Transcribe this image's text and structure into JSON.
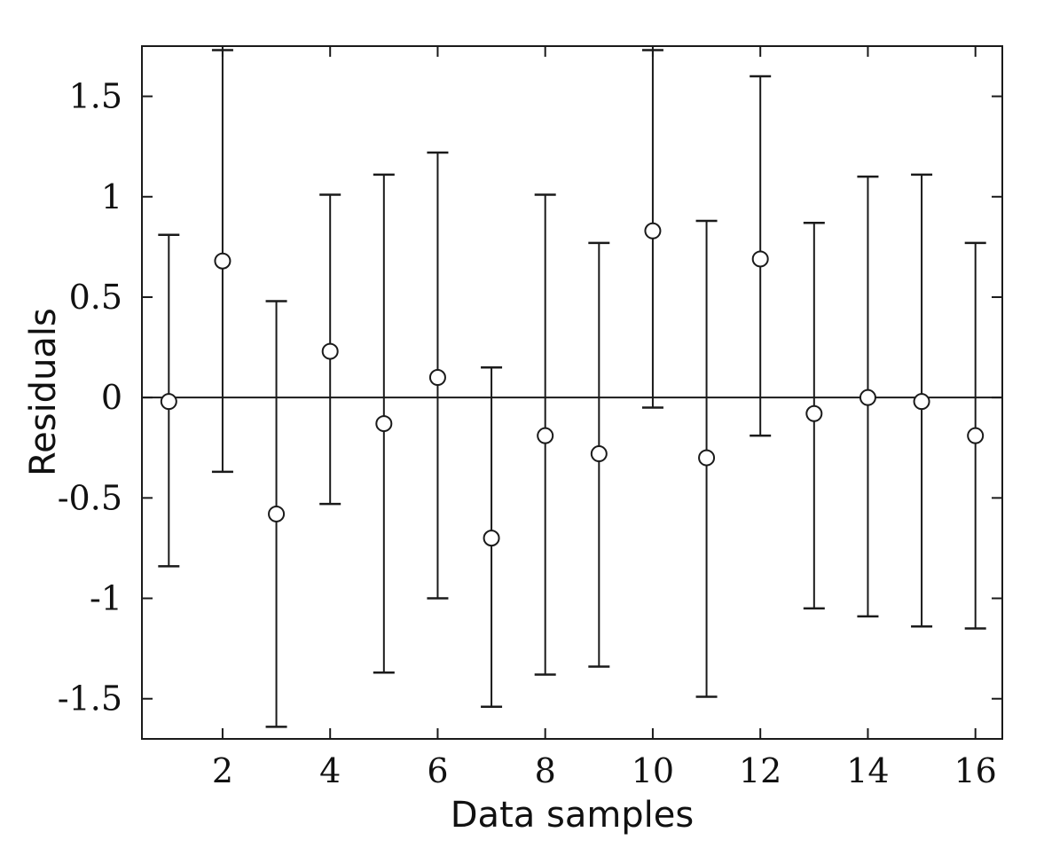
{
  "chart_data": {
    "type": "scatter",
    "title": "",
    "xlabel": "Data samples",
    "ylabel": "Residuals",
    "xlim": [
      0.5,
      16.5
    ],
    "ylim": [
      -1.7,
      1.75
    ],
    "grid": false,
    "x_ticks": [
      2,
      4,
      6,
      8,
      10,
      12,
      14,
      16
    ],
    "x_tick_labels": [
      "2",
      "4",
      "6",
      "8",
      "10",
      "12",
      "14",
      "16"
    ],
    "y_ticks": [
      1.5,
      1,
      0.5,
      0,
      -0.5,
      -1,
      -1.5
    ],
    "y_tick_labels": [
      "1.5",
      "1",
      "0.5",
      "0",
      "-0.5",
      "-1",
      "-1.5"
    ],
    "zero_line": 0,
    "x": [
      1,
      2,
      3,
      4,
      5,
      6,
      7,
      8,
      9,
      10,
      11,
      12,
      13,
      14,
      15,
      16
    ],
    "y": [
      -0.02,
      0.68,
      -0.58,
      0.23,
      -0.13,
      0.1,
      -0.7,
      -0.19,
      -0.28,
      0.83,
      -0.3,
      0.69,
      -0.08,
      0.0,
      -0.02,
      -0.19
    ],
    "error_low": [
      -0.84,
      -0.37,
      -1.64,
      -0.53,
      -1.37,
      -1.0,
      -1.54,
      -1.38,
      -1.34,
      -0.05,
      -1.49,
      -0.19,
      -1.05,
      -1.09,
      -1.14,
      -1.15
    ],
    "error_high": [
      0.81,
      1.73,
      0.48,
      1.01,
      1.11,
      1.22,
      0.15,
      1.01,
      0.77,
      1.73,
      0.88,
      1.6,
      0.87,
      1.1,
      1.11,
      0.77
    ]
  }
}
